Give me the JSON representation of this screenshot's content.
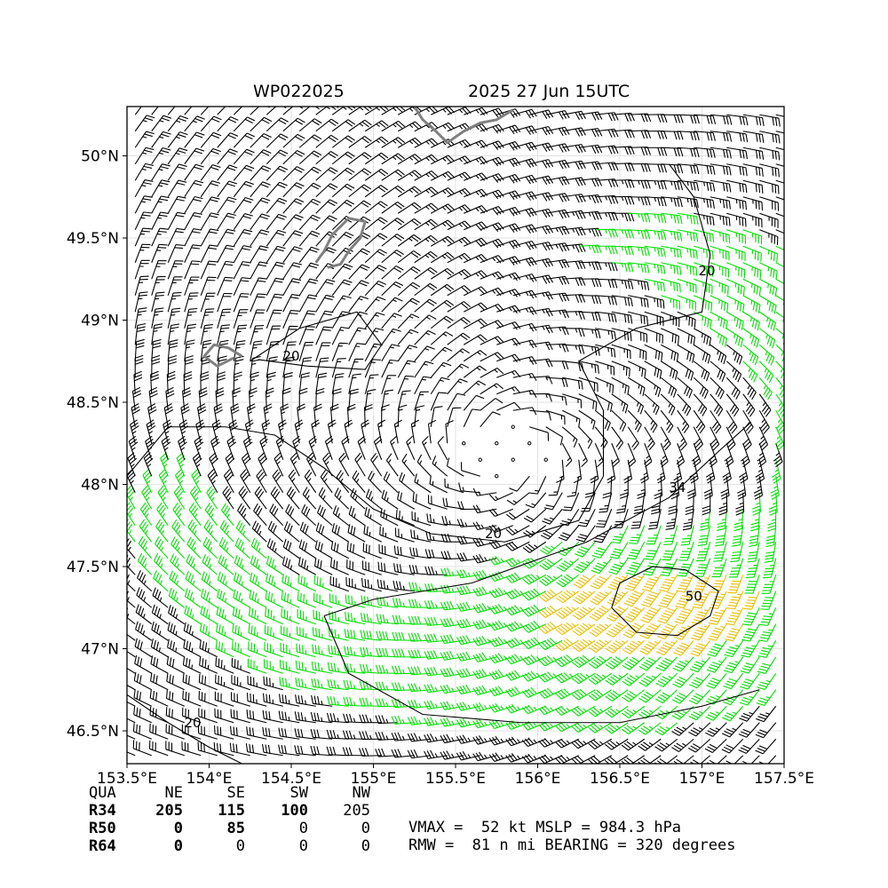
{
  "header": {
    "storm_id": "WP022025",
    "date_time": "2025 27 Jun 15UTC"
  },
  "chart_data": {
    "type": "wind-barb map",
    "lon_range": [
      153.5,
      157.5
    ],
    "lat_range": [
      46.3,
      50.3
    ],
    "x_ticks": [
      {
        "value": 153.5,
        "label": "153.5°E"
      },
      {
        "value": 154.0,
        "label": "154°E"
      },
      {
        "value": 154.5,
        "label": "154.5°E"
      },
      {
        "value": 155.0,
        "label": "155°E"
      },
      {
        "value": 155.5,
        "label": "155.5°E"
      },
      {
        "value": 156.0,
        "label": "156°E"
      },
      {
        "value": 156.5,
        "label": "156.5°E"
      },
      {
        "value": 157.0,
        "label": "157°E"
      },
      {
        "value": 157.5,
        "label": "157.5°E"
      }
    ],
    "y_ticks": [
      {
        "value": 46.5,
        "label": "46.5°N"
      },
      {
        "value": 47.0,
        "label": "47°N"
      },
      {
        "value": 47.5,
        "label": "47.5°N"
      },
      {
        "value": 48.0,
        "label": "48°N"
      },
      {
        "value": 48.5,
        "label": "48.5°N"
      },
      {
        "value": 49.0,
        "label": "49°N"
      },
      {
        "value": 49.5,
        "label": "49.5°N"
      },
      {
        "value": 50.0,
        "label": "50°N"
      }
    ],
    "grid": true,
    "center": {
      "lon": 155.8,
      "lat": 48.2
    },
    "wind_colors": {
      "below_34": "#000000",
      "34_to_49": "#00e000",
      "50_to_63": "#e8c000",
      "64_plus": "#ff7f00"
    },
    "contours": [
      {
        "label": "20",
        "label_lon": 154.5,
        "label_lat": 48.78
      },
      {
        "label": "20",
        "label_lon": 157.03,
        "label_lat": 49.3
      },
      {
        "label": "20",
        "label_lon": 155.73,
        "label_lat": 47.7
      },
      {
        "label": "20",
        "label_lon": 153.9,
        "label_lat": 46.55
      },
      {
        "label": "34",
        "label_lon": 156.85,
        "label_lat": 47.98
      },
      {
        "label": "50",
        "label_lon": 156.95,
        "label_lat": 47.32
      }
    ],
    "coastline_color": "#808080"
  },
  "wind_radii": {
    "header": [
      "QUA",
      "NE",
      "SE",
      "SW",
      "NW"
    ],
    "rows": [
      {
        "label": "R34",
        "values": [
          "205",
          "115",
          "100",
          "205"
        ]
      },
      {
        "label": "R50",
        "values": [
          "0",
          "85",
          "0",
          "0"
        ]
      },
      {
        "label": "R64",
        "values": [
          "0",
          "0",
          "0",
          "0"
        ]
      }
    ]
  },
  "stats": {
    "line1": "VMAX =  52 kt MSLP = 984.3 hPa",
    "line2": "RMW =  81 n mi BEARING = 320 degrees"
  }
}
